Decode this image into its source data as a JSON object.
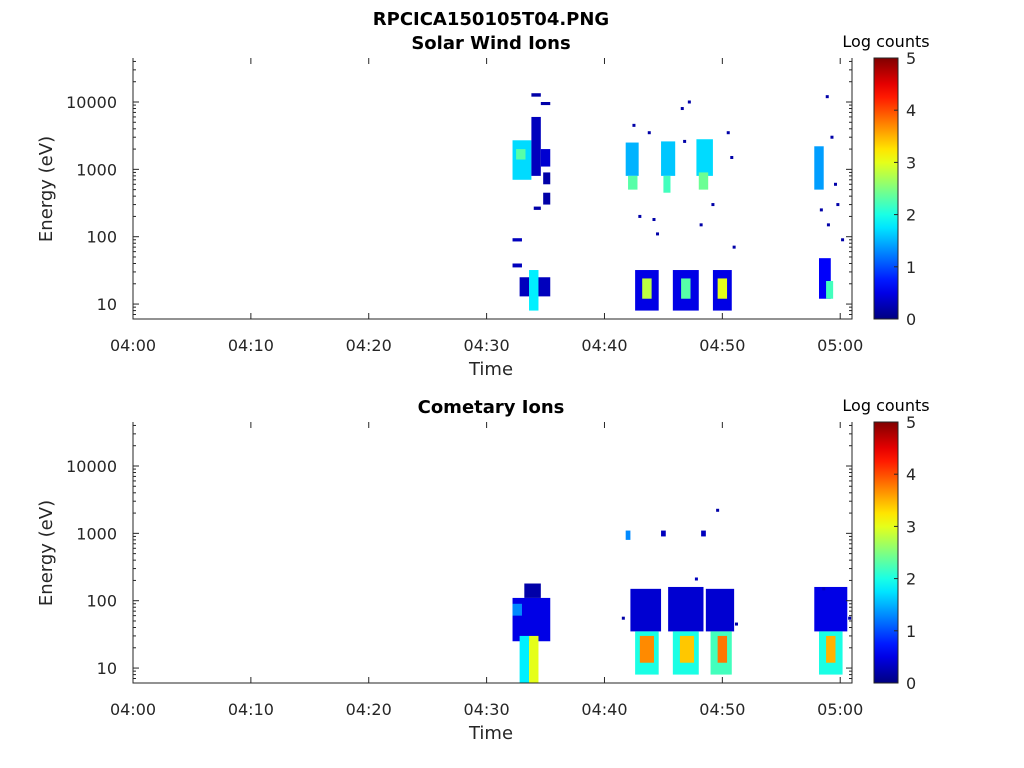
{
  "figure": {
    "title": "RPCICA150105T04.PNG"
  },
  "chart_data": [
    {
      "type": "heatmap",
      "title": "Solar Wind Ions",
      "xlabel": "Time",
      "ylabel": "Energy (eV)",
      "x_ticks": [
        "04:00",
        "04:10",
        "04:20",
        "04:30",
        "04:40",
        "04:50",
        "05:00"
      ],
      "xlim_minutes": [
        0,
        61
      ],
      "y_scale": "log",
      "y_ticks": [
        10,
        100,
        1000,
        10000
      ],
      "y_tick_labels": [
        "10",
        "100",
        "1000",
        "10000"
      ],
      "ylim": [
        6,
        45000
      ],
      "colorbar": {
        "label": "Log counts",
        "min": 0,
        "max": 5,
        "ticks": [
          "0",
          "1",
          "2",
          "3",
          "4",
          "5"
        ],
        "colormap": "jet"
      },
      "blocks": [
        {
          "t0": 32.2,
          "t1": 33.8,
          "e0": 700,
          "e1": 2700,
          "v": 1.7
        },
        {
          "t0": 32.5,
          "t1": 33.3,
          "e0": 1400,
          "e1": 2000,
          "v": 2.3
        },
        {
          "t0": 33.8,
          "t1": 34.6,
          "e0": 800,
          "e1": 6000,
          "v": 0.3
        },
        {
          "t0": 34.6,
          "t1": 35.4,
          "e0": 1100,
          "e1": 2000,
          "v": 0.4
        },
        {
          "t0": 34.8,
          "t1": 35.4,
          "e0": 600,
          "e1": 900,
          "v": 0.2
        },
        {
          "t0": 34.8,
          "t1": 35.4,
          "e0": 300,
          "e1": 450,
          "v": 0.2
        },
        {
          "t0": 33.8,
          "t1": 34.6,
          "e0": 12000,
          "e1": 13500,
          "v": 0.2
        },
        {
          "t0": 34.6,
          "t1": 35.4,
          "e0": 9000,
          "e1": 10000,
          "v": 0.2
        },
        {
          "t0": 34.0,
          "t1": 34.6,
          "e0": 250,
          "e1": 280,
          "v": 0.2
        },
        {
          "t0": 32.2,
          "t1": 33.0,
          "e0": 85,
          "e1": 95,
          "v": 0.3
        },
        {
          "t0": 32.2,
          "t1": 33.0,
          "e0": 35,
          "e1": 40,
          "v": 0.3
        },
        {
          "t0": 32.8,
          "t1": 35.4,
          "e0": 13,
          "e1": 25,
          "v": 0.3
        },
        {
          "t0": 33.6,
          "t1": 34.4,
          "e0": 8,
          "e1": 32,
          "v": 1.8
        },
        {
          "t0": 41.8,
          "t1": 42.9,
          "e0": 800,
          "e1": 2500,
          "v": 1.5
        },
        {
          "t0": 42.0,
          "t1": 42.8,
          "e0": 500,
          "e1": 800,
          "v": 2.3
        },
        {
          "t0": 44.8,
          "t1": 46.0,
          "e0": 800,
          "e1": 2600,
          "v": 1.6
        },
        {
          "t0": 45.0,
          "t1": 45.6,
          "e0": 450,
          "e1": 800,
          "v": 2.2
        },
        {
          "t0": 47.8,
          "t1": 49.2,
          "e0": 800,
          "e1": 2800,
          "v": 1.7
        },
        {
          "t0": 48.0,
          "t1": 48.8,
          "e0": 500,
          "e1": 900,
          "v": 2.4
        },
        {
          "t0": 57.8,
          "t1": 58.6,
          "e0": 500,
          "e1": 2200,
          "v": 1.4
        },
        {
          "t0": 42.6,
          "t1": 44.6,
          "e0": 8,
          "e1": 32,
          "v": 0.5
        },
        {
          "t0": 43.2,
          "t1": 44.0,
          "e0": 12,
          "e1": 24,
          "v": 2.8
        },
        {
          "t0": 45.8,
          "t1": 48.0,
          "e0": 8,
          "e1": 32,
          "v": 0.5
        },
        {
          "t0": 46.5,
          "t1": 47.3,
          "e0": 12,
          "e1": 24,
          "v": 2.3
        },
        {
          "t0": 49.2,
          "t1": 50.8,
          "e0": 8,
          "e1": 32,
          "v": 0.5
        },
        {
          "t0": 49.6,
          "t1": 50.4,
          "e0": 12,
          "e1": 24,
          "v": 3.0
        },
        {
          "t0": 58.2,
          "t1": 59.2,
          "e0": 12,
          "e1": 48,
          "v": 0.6
        },
        {
          "t0": 58.8,
          "t1": 59.4,
          "e0": 12,
          "e1": 22,
          "v": 2.2
        }
      ],
      "dots": [
        {
          "t": 42.5,
          "e": 4500,
          "v": 0.2
        },
        {
          "t": 43.8,
          "e": 3500,
          "v": 0.2
        },
        {
          "t": 43.0,
          "e": 200,
          "v": 0.2
        },
        {
          "t": 44.2,
          "e": 180,
          "v": 0.2
        },
        {
          "t": 44.5,
          "e": 110,
          "v": 0.2
        },
        {
          "t": 46.6,
          "e": 8000,
          "v": 0.2
        },
        {
          "t": 47.2,
          "e": 10000,
          "v": 0.2
        },
        {
          "t": 46.8,
          "e": 2600,
          "v": 0.2
        },
        {
          "t": 48.2,
          "e": 150,
          "v": 0.2
        },
        {
          "t": 49.2,
          "e": 300,
          "v": 0.2
        },
        {
          "t": 50.5,
          "e": 3500,
          "v": 0.2
        },
        {
          "t": 50.8,
          "e": 1500,
          "v": 0.2
        },
        {
          "t": 51.0,
          "e": 70,
          "v": 0.2
        },
        {
          "t": 58.9,
          "e": 12000,
          "v": 0.2
        },
        {
          "t": 59.3,
          "e": 3000,
          "v": 0.2
        },
        {
          "t": 59.6,
          "e": 600,
          "v": 0.2
        },
        {
          "t": 59.8,
          "e": 300,
          "v": 0.2
        },
        {
          "t": 60.2,
          "e": 90,
          "v": 0.2
        },
        {
          "t": 59.0,
          "e": 150,
          "v": 0.2
        },
        {
          "t": 58.4,
          "e": 250,
          "v": 0.2
        }
      ]
    },
    {
      "type": "heatmap",
      "title": "Cometary Ions",
      "xlabel": "Time",
      "ylabel": "Energy (eV)",
      "x_ticks": [
        "04:00",
        "04:10",
        "04:20",
        "04:30",
        "04:40",
        "04:50",
        "05:00"
      ],
      "xlim_minutes": [
        0,
        61
      ],
      "y_scale": "log",
      "y_ticks": [
        10,
        100,
        1000,
        10000
      ],
      "y_tick_labels": [
        "10",
        "100",
        "1000",
        "10000"
      ],
      "ylim": [
        6,
        45000
      ],
      "colorbar": {
        "label": "Log counts",
        "min": 0,
        "max": 5,
        "ticks": [
          "0",
          "1",
          "2",
          "3",
          "4",
          "5"
        ],
        "colormap": "jet"
      },
      "blocks": [
        {
          "t0": 32.2,
          "t1": 35.4,
          "e0": 25,
          "e1": 110,
          "v": 0.5
        },
        {
          "t0": 33.2,
          "t1": 34.6,
          "e0": 110,
          "e1": 180,
          "v": 0.2
        },
        {
          "t0": 32.8,
          "t1": 33.6,
          "e0": 6,
          "e1": 30,
          "v": 1.8
        },
        {
          "t0": 33.6,
          "t1": 34.4,
          "e0": 6,
          "e1": 30,
          "v": 3.0
        },
        {
          "t0": 32.2,
          "t1": 33.0,
          "e0": 60,
          "e1": 90,
          "v": 1.3
        },
        {
          "t0": 41.8,
          "t1": 42.2,
          "e0": 800,
          "e1": 1100,
          "v": 1.3
        },
        {
          "t0": 44.8,
          "t1": 45.2,
          "e0": 900,
          "e1": 1100,
          "v": 0.3
        },
        {
          "t0": 48.2,
          "t1": 48.6,
          "e0": 900,
          "e1": 1100,
          "v": 0.3
        },
        {
          "t0": 42.2,
          "t1": 44.8,
          "e0": 35,
          "e1": 150,
          "v": 0.4
        },
        {
          "t0": 42.6,
          "t1": 44.6,
          "e0": 8,
          "e1": 35,
          "v": 2.0
        },
        {
          "t0": 43.0,
          "t1": 44.2,
          "e0": 12,
          "e1": 30,
          "v": 3.7
        },
        {
          "t0": 45.4,
          "t1": 48.4,
          "e0": 35,
          "e1": 160,
          "v": 0.4
        },
        {
          "t0": 45.8,
          "t1": 48.0,
          "e0": 8,
          "e1": 35,
          "v": 2.0
        },
        {
          "t0": 46.4,
          "t1": 47.6,
          "e0": 12,
          "e1": 30,
          "v": 3.4
        },
        {
          "t0": 48.6,
          "t1": 51.0,
          "e0": 35,
          "e1": 150,
          "v": 0.4
        },
        {
          "t0": 49.0,
          "t1": 50.8,
          "e0": 8,
          "e1": 35,
          "v": 2.2
        },
        {
          "t0": 49.6,
          "t1": 50.4,
          "e0": 12,
          "e1": 30,
          "v": 3.8
        },
        {
          "t0": 57.8,
          "t1": 60.6,
          "e0": 35,
          "e1": 160,
          "v": 0.5
        },
        {
          "t0": 58.2,
          "t1": 60.2,
          "e0": 8,
          "e1": 35,
          "v": 2.0
        },
        {
          "t0": 58.8,
          "t1": 59.6,
          "e0": 12,
          "e1": 30,
          "v": 3.5
        }
      ],
      "dots": [
        {
          "t": 49.6,
          "e": 2200,
          "v": 0.2
        },
        {
          "t": 47.8,
          "e": 210,
          "v": 0.3
        },
        {
          "t": 41.6,
          "e": 55,
          "v": 0.2
        },
        {
          "t": 51.2,
          "e": 45,
          "v": 0.2
        },
        {
          "t": 60.8,
          "e": 55,
          "v": 0.2
        },
        {
          "t": 58.6,
          "e": 150,
          "v": 0.3
        }
      ]
    }
  ]
}
